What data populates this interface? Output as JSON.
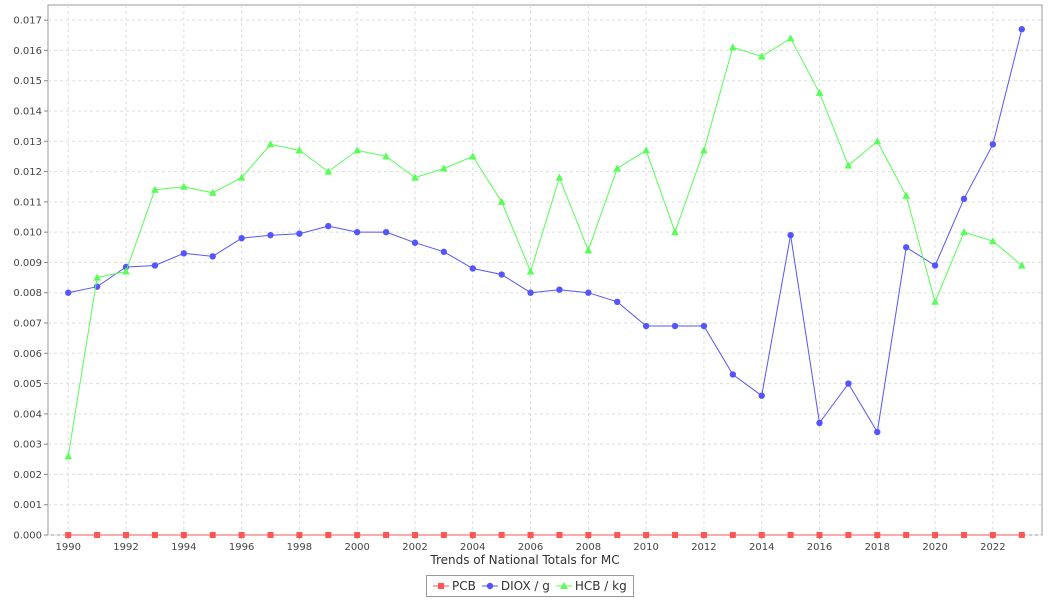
{
  "chart_data": {
    "type": "line",
    "xlabel": "Trends of National Totals for MC",
    "ylabel": "",
    "ylim": [
      0,
      0.0175
    ],
    "xlim": [
      1989.3,
      2023.7
    ],
    "x_ticks": [
      1990,
      1992,
      1994,
      1996,
      1998,
      2000,
      2002,
      2004,
      2006,
      2008,
      2010,
      2012,
      2014,
      2016,
      2018,
      2020,
      2022
    ],
    "y_ticks": [
      "0.000",
      "0.001",
      "0.002",
      "0.003",
      "0.004",
      "0.005",
      "0.006",
      "0.007",
      "0.008",
      "0.009",
      "0.010",
      "0.011",
      "0.012",
      "0.013",
      "0.014",
      "0.015",
      "0.016",
      "0.017"
    ],
    "grid": true,
    "legend_position": "bottom",
    "x": [
      1990,
      1991,
      1992,
      1993,
      1994,
      1995,
      1996,
      1997,
      1998,
      1999,
      2000,
      2001,
      2002,
      2003,
      2004,
      2005,
      2006,
      2007,
      2008,
      2009,
      2010,
      2011,
      2012,
      2013,
      2014,
      2015,
      2016,
      2017,
      2018,
      2019,
      2020,
      2021,
      2022,
      2023
    ],
    "series": [
      {
        "name": "PCB",
        "color": "#ff5555",
        "marker": "square",
        "values": [
          0,
          0,
          0,
          0,
          0,
          0,
          0,
          0,
          0,
          0,
          0,
          0,
          0,
          0,
          0,
          0,
          0,
          0,
          0,
          0,
          0,
          0,
          0,
          0,
          0,
          0,
          0,
          0,
          0,
          0,
          0,
          0,
          0,
          0
        ]
      },
      {
        "name": "DIOX / g",
        "color": "#5555ff",
        "marker": "circle",
        "values": [
          0.008,
          0.0082,
          0.00885,
          0.0089,
          0.0093,
          0.0092,
          0.0098,
          0.0099,
          0.00995,
          0.0102,
          0.01,
          0.01,
          0.00965,
          0.00935,
          0.0088,
          0.0086,
          0.008,
          0.0081,
          0.008,
          0.0077,
          0.0069,
          0.0069,
          0.0069,
          0.0053,
          0.0046,
          0.0099,
          0.0037,
          0.005,
          0.0034,
          0.0095,
          0.0089,
          0.0111,
          0.0129,
          0.0167
        ]
      },
      {
        "name": "HCB / kg",
        "color": "#55ff55",
        "marker": "triangle",
        "values": [
          0.0026,
          0.0085,
          0.0087,
          0.0114,
          0.0115,
          0.0113,
          0.0118,
          0.0129,
          0.0127,
          0.012,
          0.0127,
          0.0125,
          0.0118,
          0.0121,
          0.0125,
          0.011,
          0.0087,
          0.0118,
          0.0094,
          0.0121,
          0.0127,
          0.01,
          0.0127,
          0.0161,
          0.0158,
          0.0164,
          0.0146,
          0.0122,
          0.013,
          0.0112,
          0.0077,
          0.01,
          0.0097,
          0.0089
        ]
      }
    ]
  }
}
